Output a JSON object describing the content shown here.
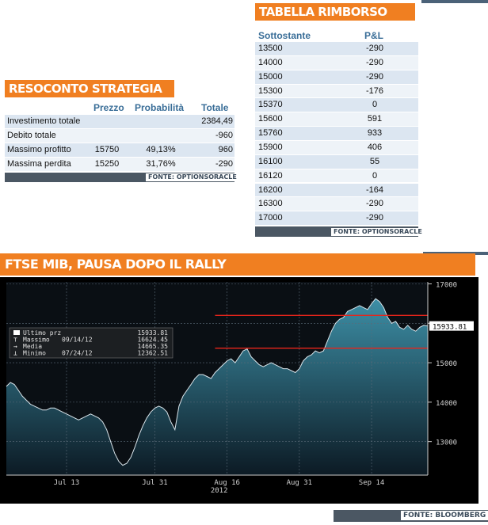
{
  "rimborso": {
    "title": "TABELLA RIMBORSO",
    "col_underlying": "Sottostante",
    "col_pl": "P&L",
    "rows": [
      {
        "s": "13500",
        "pl": "-290"
      },
      {
        "s": "14000",
        "pl": "-290"
      },
      {
        "s": "15000",
        "pl": "-290"
      },
      {
        "s": "15300",
        "pl": "-176"
      },
      {
        "s": "15370",
        "pl": "0"
      },
      {
        "s": "15600",
        "pl": "591"
      },
      {
        "s": "15760",
        "pl": "933"
      },
      {
        "s": "15900",
        "pl": "406"
      },
      {
        "s": "16100",
        "pl": "55"
      },
      {
        "s": "16120",
        "pl": "0"
      },
      {
        "s": "16200",
        "pl": "-164"
      },
      {
        "s": "16300",
        "pl": "-290"
      },
      {
        "s": "17000",
        "pl": "-290"
      }
    ],
    "source": "FONTE: OPTIONSORACLE"
  },
  "resoconto": {
    "title": "RESOCONTO STRATEGIA",
    "col_price": "Prezzo",
    "col_prob": "Probabilità",
    "col_total": "Totale",
    "rows": [
      {
        "label": "Investimento totale",
        "price": "",
        "prob": "",
        "total": "2384,49"
      },
      {
        "label": "Debito totale",
        "price": "",
        "prob": "",
        "total": "-960"
      },
      {
        "label": "Massimo profitto",
        "price": "15750",
        "prob": "49,13%",
        "total": "960"
      },
      {
        "label": "Massima perdita",
        "price": "15250",
        "prob": "31,76%",
        "total": "-290"
      }
    ],
    "source": "FONTE: OPTIONSORACLE"
  },
  "chart_title": "FTSE MIB, PAUSA DOPO IL RALLY",
  "chart_source": "FONTE: BLOOMBERG",
  "colors": {
    "accent": "#f07f21",
    "header_blue": "#3a6e98",
    "row_a": "#dce6f1",
    "row_b": "#eef3f8",
    "chart_bg": "#000000",
    "area_top": "#3d8fa6",
    "ref_line": "#e8251b"
  },
  "chart_data": {
    "type": "area",
    "legend": [
      {
        "icon": "square",
        "label": "Ultimo prz",
        "date": "",
        "value": "15933.81"
      },
      {
        "icon": "high",
        "label": "Massimo",
        "date": "09/14/12",
        "value": "16624.45"
      },
      {
        "icon": "mean",
        "label": "Media",
        "date": "",
        "value": "14665.35"
      },
      {
        "icon": "low",
        "label": "Minimo",
        "date": "07/24/12",
        "value": "12362.51"
      }
    ],
    "last_label": "15933.81",
    "ylim": [
      12150,
      17050
    ],
    "yticks": [
      {
        "v": 13000,
        "label": "13000"
      },
      {
        "v": 14000,
        "label": "14000"
      },
      {
        "v": 15000,
        "label": "15000"
      },
      {
        "v": 16000,
        "label": "16000"
      },
      {
        "v": 17000,
        "label": "17000"
      }
    ],
    "xticks": [
      {
        "i": 15,
        "label": "Jul 13"
      },
      {
        "i": 37,
        "label": "Jul 31"
      },
      {
        "i": 55,
        "label": "Aug 16"
      },
      {
        "i": 73,
        "label": "Aug 31"
      },
      {
        "i": 91,
        "label": "Sep 14"
      }
    ],
    "year_label": {
      "i": 55,
      "label": "2012"
    },
    "ref_lines": [
      16200,
      15370
    ],
    "values": [
      14400,
      14500,
      14450,
      14300,
      14150,
      14050,
      13950,
      13900,
      13850,
      13800,
      13800,
      13850,
      13850,
      13800,
      13750,
      13700,
      13650,
      13600,
      13550,
      13600,
      13650,
      13700,
      13650,
      13600,
      13500,
      13300,
      13000,
      12700,
      12500,
      12400,
      12450,
      12600,
      12850,
      13150,
      13400,
      13600,
      13750,
      13850,
      13900,
      13850,
      13750,
      13500,
      13300,
      13900,
      14150,
      14300,
      14450,
      14600,
      14700,
      14700,
      14650,
      14600,
      14750,
      14850,
      14950,
      15050,
      15100,
      15000,
      15150,
      15300,
      15350,
      15150,
      15050,
      14950,
      14900,
      14950,
      15000,
      14950,
      14900,
      14850,
      14850,
      14800,
      14750,
      14850,
      15050,
      15150,
      15200,
      15300,
      15250,
      15300,
      15550,
      15800,
      16000,
      16100,
      16150,
      16300,
      16350,
      16400,
      16450,
      16400,
      16350,
      16500,
      16624,
      16550,
      16400,
      16150,
      16000,
      16050,
      15900,
      15850,
      15950,
      15850,
      15800,
      15900,
      15950,
      15933
    ]
  }
}
